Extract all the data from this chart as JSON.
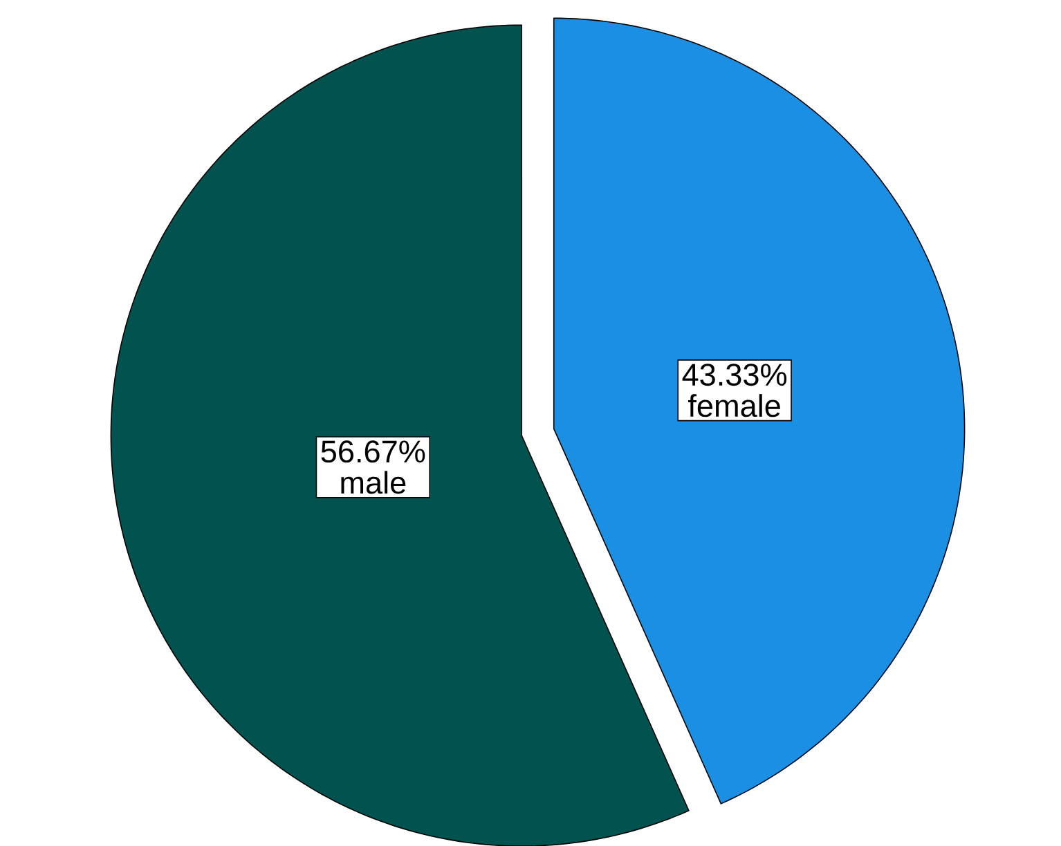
{
  "chart_data": {
    "type": "pie",
    "categories": [
      "male",
      "female"
    ],
    "values": [
      56.67,
      43.33
    ],
    "colors": [
      "#02524f",
      "#1a8fe3"
    ],
    "value_labels": [
      "56.67%",
      "43.33%"
    ]
  }
}
